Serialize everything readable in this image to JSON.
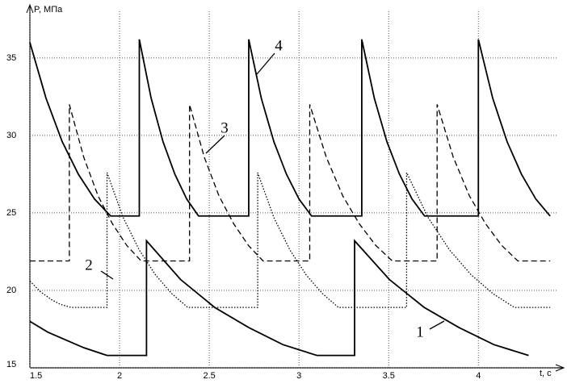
{
  "chart_data": {
    "type": "line",
    "y_label": "P, МПа",
    "x_label": "t, c",
    "xlim": [
      1.5,
      4.44
    ],
    "ylim": [
      15,
      37.7
    ],
    "xticks": [
      1.5,
      2,
      2.5,
      3,
      3.5,
      4
    ],
    "yticks": [
      15,
      20,
      25,
      30,
      35
    ],
    "grid": true,
    "series": [
      {
        "name": "1",
        "color": "#000000",
        "style": "solid",
        "x": [
          1.5,
          1.6,
          1.7,
          1.8,
          1.93,
          2.15,
          2.15,
          2.34,
          2.53,
          2.72,
          2.91,
          3.1,
          3.31,
          3.31,
          3.504,
          3.698,
          3.892,
          4.086,
          4.28
        ],
        "values": [
          18.0,
          17.3,
          16.8,
          16.3,
          15.8,
          15.8,
          23.2,
          20.7,
          18.9,
          17.6,
          16.5,
          15.8,
          15.8,
          23.2,
          20.7,
          18.9,
          17.6,
          16.5,
          15.8
        ]
      },
      {
        "name": "2",
        "color": "#000000",
        "style": "dotted",
        "x": [
          1.5,
          1.56,
          1.62,
          1.67,
          1.73,
          1.93,
          1.93,
          2.02,
          2.11,
          2.2,
          2.29,
          2.38,
          2.77,
          2.77,
          2.86,
          2.95,
          3.04,
          3.13,
          3.22,
          3.6,
          3.6,
          3.72,
          3.84,
          3.96,
          4.08,
          4.2,
          4.4
        ],
        "values": [
          20.6,
          19.9,
          19.4,
          19.1,
          18.9,
          18.9,
          27.6,
          24.7,
          22.6,
          21.0,
          19.8,
          18.9,
          18.9,
          27.6,
          24.7,
          22.6,
          21.0,
          19.8,
          18.9,
          18.9,
          27.6,
          24.7,
          22.6,
          21.0,
          19.8,
          18.9,
          18.9
        ]
      },
      {
        "name": "3",
        "color": "#000000",
        "style": "dashed",
        "x": [
          1.5,
          1.72,
          1.72,
          1.8,
          1.88,
          1.96,
          2.04,
          2.12,
          2.39,
          2.39,
          2.472,
          2.554,
          2.636,
          2.718,
          2.8,
          3.06,
          3.06,
          3.152,
          3.244,
          3.336,
          3.428,
          3.52,
          3.77,
          3.77,
          3.86,
          3.95,
          4.04,
          4.13,
          4.22,
          4.4
        ],
        "values": [
          21.9,
          21.9,
          32,
          28.6,
          26.1,
          24.3,
          22.9,
          21.9,
          21.9,
          32,
          28.6,
          26.1,
          24.3,
          22.9,
          21.9,
          21.9,
          32,
          28.6,
          26.1,
          24.3,
          22.9,
          21.9,
          21.9,
          32,
          28.6,
          26.1,
          24.3,
          22.9,
          21.9,
          21.9
        ]
      },
      {
        "name": "4",
        "color": "#000000",
        "style": "solid",
        "x": [
          1.5,
          1.59,
          1.68,
          1.77,
          1.86,
          1.95,
          2.11,
          2.11,
          2.176,
          2.242,
          2.308,
          2.374,
          2.44,
          2.72,
          2.72,
          2.79,
          2.86,
          2.93,
          3.0,
          3.07,
          3.35,
          3.35,
          3.42,
          3.49,
          3.56,
          3.63,
          3.7,
          4.0,
          4.0,
          4.08,
          4.16,
          4.24,
          4.32,
          4.4
        ],
        "values": [
          36,
          32.4,
          29.6,
          27.5,
          25.9,
          24.8,
          24.8,
          36.2,
          32.4,
          29.6,
          27.5,
          25.9,
          24.8,
          24.8,
          36.2,
          32.4,
          29.6,
          27.5,
          25.9,
          24.8,
          24.8,
          36.2,
          32.4,
          29.6,
          27.5,
          25.9,
          24.8,
          24.8,
          36.2,
          32.4,
          29.6,
          27.5,
          25.9,
          24.8
        ]
      }
    ]
  }
}
